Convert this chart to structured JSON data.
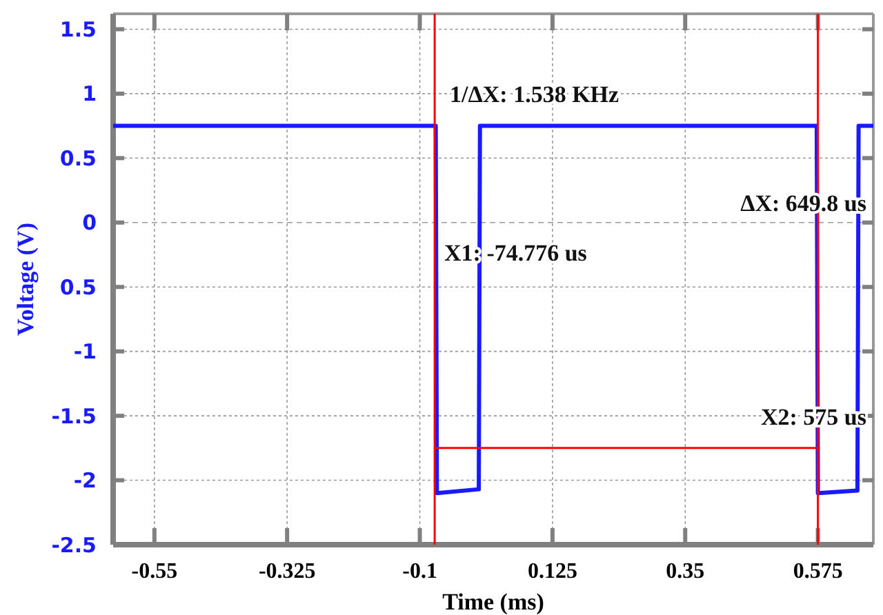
{
  "chart_data": {
    "type": "line",
    "xlabel": "Time (ms)",
    "ylabel": "Voltage (V)",
    "xlim": [
      -0.62,
      0.669
    ],
    "ylim": [
      -2.5,
      1.62
    ],
    "xticks": [
      -0.55,
      -0.325,
      -0.1,
      0.125,
      0.35,
      0.575
    ],
    "yticks": [
      1.5,
      1,
      0.5,
      0,
      {
        "value": -0.5,
        "label": "0.5"
      },
      -1,
      -1.5,
      -2,
      -2.5
    ],
    "grid": true,
    "line_style": "solid",
    "marker": "none",
    "series": [
      {
        "color": "#1a1aff",
        "x": [
          -0.62,
          -0.073,
          -0.071,
          0.0,
          0.002,
          0.573,
          0.575,
          0.642,
          0.644,
          0.669
        ],
        "values": [
          0.75,
          0.75,
          -2.1,
          -2.07,
          0.75,
          0.75,
          -2.1,
          -2.08,
          0.75,
          0.75
        ]
      },
      {
        "color": "#ff0000",
        "x": [
          -0.0748,
          0.575
        ],
        "values": [
          -1.75,
          -1.75
        ]
      }
    ],
    "ref_lines": [
      {
        "axis": "x",
        "value": -0.0748,
        "color": "#ff0000"
      },
      {
        "axis": "x",
        "value": 0.575,
        "color": "#ff0000"
      }
    ],
    "annotations": [
      "1/ΔX: 1.538 KHz",
      "ΔX: 649.8 us",
      "X1: -74.776 us",
      "X2: 575 us"
    ]
  }
}
